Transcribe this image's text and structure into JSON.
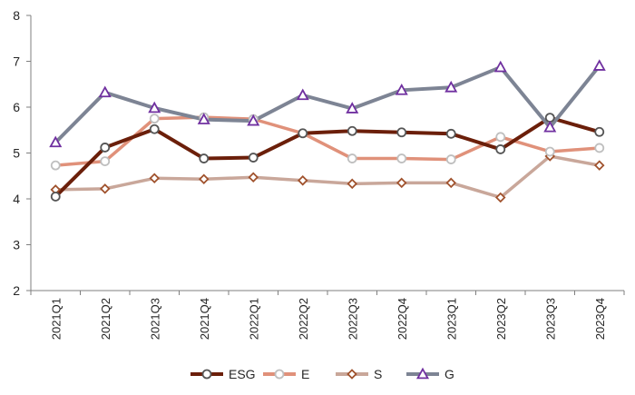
{
  "chart_data": {
    "type": "line",
    "title": "",
    "xlabel": "",
    "ylabel": "",
    "categories": [
      "2021Q1",
      "2021Q2",
      "2021Q3",
      "2021Q4",
      "2022Q1",
      "2022Q2",
      "2022Q3",
      "2022Q4",
      "2023Q1",
      "2023Q2",
      "2023Q3",
      "2023Q4"
    ],
    "ylim": [
      2,
      8
    ],
    "yticks": [
      "2",
      "3",
      "4",
      "5",
      "6",
      "7",
      "8"
    ],
    "grid": false,
    "legend_position": "bottom",
    "series": [
      {
        "name": "ESG",
        "color": "#6b1f0a",
        "marker": "circle",
        "values": [
          4.05,
          5.12,
          5.52,
          4.88,
          4.9,
          5.43,
          5.48,
          5.45,
          5.42,
          5.08,
          5.77,
          5.46
        ]
      },
      {
        "name": "E",
        "color": "#e0917a",
        "marker": "circle",
        "values": [
          4.73,
          4.82,
          5.75,
          5.78,
          5.74,
          5.43,
          4.88,
          4.88,
          4.86,
          5.35,
          5.03,
          5.11
        ]
      },
      {
        "name": "S",
        "color": "#c9a79a",
        "marker": "diamond",
        "values": [
          4.2,
          4.22,
          4.45,
          4.43,
          4.47,
          4.4,
          4.33,
          4.35,
          4.35,
          4.03,
          4.93,
          4.73
        ]
      },
      {
        "name": "G",
        "color": "#7d8494",
        "marker": "triangle",
        "values": [
          5.23,
          6.32,
          5.98,
          5.73,
          5.7,
          6.26,
          5.97,
          6.37,
          6.43,
          6.87,
          5.56,
          6.9
        ]
      }
    ]
  }
}
